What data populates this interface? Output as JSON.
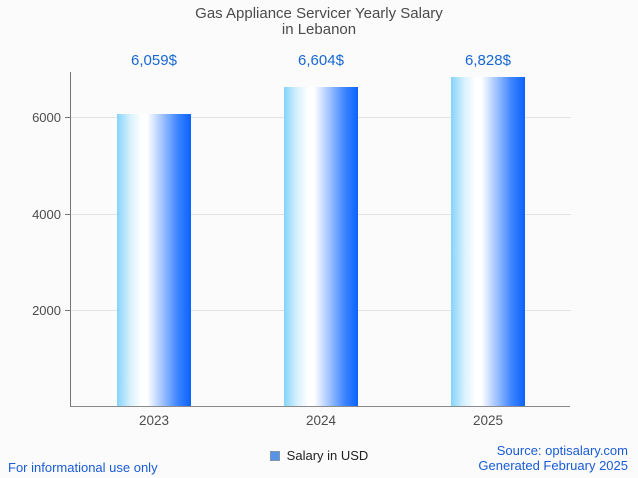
{
  "title": {
    "line1": "Gas Appliance Servicer Yearly Salary",
    "line2": "in Lebanon"
  },
  "chart_data": {
    "type": "bar",
    "title": "Gas Appliance Servicer Yearly Salary in Lebanon",
    "categories": [
      "2023",
      "2024",
      "2025"
    ],
    "series": [
      {
        "name": "Salary in USD",
        "values": [
          6059,
          6604,
          6828
        ]
      }
    ],
    "value_labels": [
      "6,059$",
      "6,604$",
      "6,828$"
    ],
    "xlabel": "",
    "ylabel": "",
    "ylim": [
      0,
      6943
    ],
    "yticks": [
      2000,
      4000,
      6000
    ],
    "ytick_labels": [
      "2000",
      "4000",
      "6000"
    ],
    "grid": true,
    "legend_position": "bottom"
  },
  "legend": {
    "label": "Salary in USD"
  },
  "footer": {
    "left": "For informational use only",
    "source": "Source: optisalary.com",
    "generated": "Generated February 2025"
  },
  "colors": {
    "value_label": "#1767d2",
    "footer_text": "#1a5bd7",
    "title_text": "#4b4b4b",
    "axis_line": "#757575",
    "gridline": "#e3e3e3",
    "tick_label": "#4d4d4d",
    "bar_gradient_left": "#86d4fa",
    "bar_gradient_mid": "#ffffff",
    "bar_gradient_right": "#0b63fd",
    "legend_swatch_fill": "#5794e6",
    "legend_swatch_border": "#8094ac",
    "background": "#fbfbfb"
  }
}
